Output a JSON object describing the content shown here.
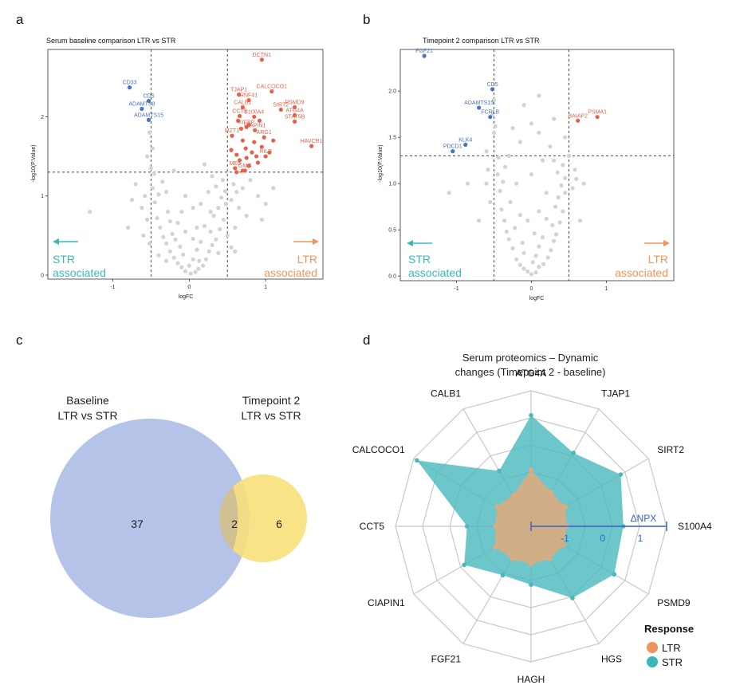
{
  "panels": {
    "a": "a",
    "b": "b",
    "c": "c",
    "d": "d"
  },
  "colors": {
    "up": "#e8604a",
    "down": "#4a72c8",
    "ns": "#d3d3d3",
    "str": "#3ab8b8",
    "ltr": "#f0935a",
    "venn_a": "#aebde6",
    "venn_b": "#f7e07a",
    "radar_str": "#49b9bd",
    "radar_ltr": "#e9a776"
  },
  "chart_data": [
    {
      "id": "a",
      "type": "scatter",
      "title": "Serum baseline comparison LTR vs STR",
      "xlabel": "logFC",
      "ylabel": "-log10(P.Value)",
      "xlim": [
        -1.85,
        1.75
      ],
      "ylim": [
        -0.05,
        2.85
      ],
      "xticks": [
        -1,
        0,
        1
      ],
      "yticks": [
        0,
        1,
        2
      ],
      "vlines": [
        -0.5,
        0.5
      ],
      "hline": 1.3,
      "left_label": [
        "STR",
        "associated"
      ],
      "right_label": [
        "LTR",
        "associated"
      ],
      "labeled": [
        {
          "label": "DCTN1",
          "x": 0.95,
          "y": 2.72,
          "group": "up"
        },
        {
          "label": "CALCOCO1",
          "x": 1.08,
          "y": 2.32,
          "group": "up"
        },
        {
          "label": "TJAP1",
          "x": 0.65,
          "y": 2.28,
          "group": "up"
        },
        {
          "label": "RNF41",
          "x": 0.78,
          "y": 2.21,
          "group": "up"
        },
        {
          "label": "PSMD9",
          "x": 1.38,
          "y": 2.12,
          "group": "up"
        },
        {
          "label": "CALB1",
          "x": 0.7,
          "y": 2.12,
          "group": "up"
        },
        {
          "label": "SIRT2",
          "x": 1.2,
          "y": 2.09,
          "group": "up"
        },
        {
          "label": "CCT5",
          "x": 0.66,
          "y": 2.01,
          "group": "up"
        },
        {
          "label": "S100A4",
          "x": 0.85,
          "y": 2.0,
          "group": "up"
        },
        {
          "label": "ATG4A",
          "x": 1.38,
          "y": 2.02,
          "group": "up"
        },
        {
          "label": "STAT5B",
          "x": 1.38,
          "y": 1.94,
          "group": "up"
        },
        {
          "label": "KIFBP",
          "x": 0.75,
          "y": 1.87,
          "group": "up"
        },
        {
          "label": "CIAPIN1",
          "x": 0.86,
          "y": 1.83,
          "group": "up"
        },
        {
          "label": "MZT1",
          "x": 0.56,
          "y": 1.76,
          "group": "up"
        },
        {
          "label": "ARG1",
          "x": 0.98,
          "y": 1.74,
          "group": "up"
        },
        {
          "label": "HAVCR1",
          "x": 1.6,
          "y": 1.63,
          "group": "up"
        },
        {
          "label": "RILP",
          "x": 1.0,
          "y": 1.5,
          "group": "up"
        },
        {
          "label": "ME5",
          "x": 0.6,
          "y": 1.35,
          "group": "up"
        },
        {
          "label": "GMG",
          "x": 0.73,
          "y": 1.32,
          "group": "up"
        },
        {
          "label": "CD33",
          "x": -0.78,
          "y": 2.37,
          "group": "down"
        },
        {
          "label": "CD5",
          "x": -0.53,
          "y": 2.2,
          "group": "down"
        },
        {
          "label": "ADAMTS8",
          "x": -0.62,
          "y": 2.1,
          "group": "down"
        },
        {
          "label": "ADAMTS15",
          "x": -0.53,
          "y": 1.96,
          "group": "down"
        }
      ],
      "up_points": [
        [
          0.62,
          1.3
        ],
        [
          0.7,
          1.32
        ],
        [
          0.78,
          1.38
        ],
        [
          0.66,
          1.45
        ],
        [
          0.9,
          1.42
        ],
        [
          0.82,
          1.55
        ],
        [
          0.74,
          1.6
        ],
        [
          0.95,
          1.62
        ],
        [
          0.7,
          1.7
        ],
        [
          0.85,
          1.68
        ],
        [
          0.62,
          1.52
        ],
        [
          0.78,
          1.9
        ],
        [
          0.92,
          1.95
        ],
        [
          0.68,
          1.85
        ],
        [
          1.05,
          1.55
        ],
        [
          0.55,
          1.58
        ],
        [
          0.88,
          1.5
        ],
        [
          0.75,
          1.48
        ],
        [
          1.1,
          1.7
        ],
        [
          0.64,
          1.95
        ]
      ],
      "ns_points": [
        [
          0.02,
          0.02
        ],
        [
          -0.05,
          0.05
        ],
        [
          0.08,
          0.04
        ],
        [
          -0.1,
          0.1
        ],
        [
          0.12,
          0.08
        ],
        [
          -0.15,
          0.15
        ],
        [
          0.18,
          0.12
        ],
        [
          0.0,
          0.12
        ],
        [
          -0.2,
          0.22
        ],
        [
          0.22,
          0.2
        ],
        [
          0.05,
          0.2
        ],
        [
          -0.08,
          0.26
        ],
        [
          0.26,
          0.3
        ],
        [
          -0.25,
          0.3
        ],
        [
          0.1,
          0.32
        ],
        [
          -0.12,
          0.36
        ],
        [
          0.3,
          0.38
        ],
        [
          -0.3,
          0.4
        ],
        [
          0.15,
          0.42
        ],
        [
          0.35,
          0.45
        ],
        [
          -0.34,
          0.48
        ],
        [
          0.05,
          0.46
        ],
        [
          -0.22,
          0.52
        ],
        [
          0.28,
          0.55
        ],
        [
          0.4,
          0.58
        ],
        [
          -0.38,
          0.6
        ],
        [
          0.2,
          0.62
        ],
        [
          -0.15,
          0.66
        ],
        [
          0.45,
          0.7
        ],
        [
          -0.42,
          0.72
        ],
        [
          0.32,
          0.75
        ],
        [
          -0.28,
          0.8
        ],
        [
          0.38,
          0.85
        ],
        [
          0.48,
          0.9
        ],
        [
          -0.45,
          0.92
        ],
        [
          0.42,
          0.98
        ],
        [
          -0.4,
          1.02
        ],
        [
          0.47,
          1.06
        ],
        [
          -0.48,
          1.1
        ],
        [
          0.35,
          1.12
        ],
        [
          -0.35,
          1.18
        ],
        [
          0.44,
          1.2
        ],
        [
          0.3,
          1.25
        ],
        [
          -0.46,
          1.28
        ],
        [
          0.55,
          0.95
        ],
        [
          0.62,
          1.05
        ],
        [
          0.58,
          1.15
        ],
        [
          0.7,
          1.1
        ],
        [
          0.65,
          0.85
        ],
        [
          0.8,
          1.2
        ],
        [
          0.75,
          0.75
        ],
        [
          0.9,
          1.0
        ],
        [
          0.6,
          0.6
        ],
        [
          -0.55,
          0.7
        ],
        [
          -0.62,
          0.85
        ],
        [
          -0.58,
          1.0
        ],
        [
          -0.7,
          1.15
        ],
        [
          -0.6,
          0.5
        ],
        [
          -0.75,
          0.95
        ],
        [
          -1.3,
          0.8
        ],
        [
          -0.8,
          0.6
        ],
        [
          1.0,
          0.9
        ],
        [
          1.1,
          1.1
        ],
        [
          0.95,
          0.7
        ],
        [
          -0.5,
          1.35
        ],
        [
          -0.55,
          1.5
        ],
        [
          -0.48,
          1.6
        ],
        [
          -0.52,
          1.8
        ],
        [
          -0.2,
          1.32
        ],
        [
          0.2,
          1.4
        ],
        [
          0.1,
          0.6
        ],
        [
          -0.05,
          0.55
        ],
        [
          -0.18,
          0.45
        ],
        [
          0.28,
          0.8
        ],
        [
          0.5,
          0.5
        ],
        [
          -0.52,
          0.4
        ],
        [
          0.55,
          0.35
        ],
        [
          0.6,
          0.3
        ],
        [
          -0.3,
          1.05
        ],
        [
          0.25,
          1.05
        ],
        [
          0.15,
          0.9
        ],
        [
          -0.1,
          0.8
        ],
        [
          -0.05,
          1.0
        ],
        [
          0.05,
          0.85
        ],
        [
          -0.25,
          0.68
        ],
        [
          0.38,
          0.28
        ],
        [
          -0.4,
          0.25
        ],
        [
          0.13,
          0.18
        ],
        [
          -0.3,
          0.18
        ]
      ]
    },
    {
      "id": "b",
      "type": "scatter",
      "title": "Timepoint 2 comparison LTR vs STR",
      "xlabel": "logFC",
      "ylabel": "-log10(P.Value)",
      "xlim": [
        -1.75,
        1.9
      ],
      "ylim": [
        -0.05,
        2.45
      ],
      "xticks": [
        -1,
        0,
        1
      ],
      "yticks": [
        0.0,
        0.5,
        1.0,
        1.5,
        2.0
      ],
      "vlines": [
        -0.5,
        0.5
      ],
      "hline": 1.3,
      "left_label": [
        "STR",
        "associated"
      ],
      "right_label": [
        "LTR",
        "associated"
      ],
      "labeled": [
        {
          "label": "FGF21",
          "x": -1.43,
          "y": 2.38,
          "group": "down"
        },
        {
          "label": "CD5",
          "x": -0.52,
          "y": 2.02,
          "group": "down"
        },
        {
          "label": "ADAMTS15",
          "x": -0.7,
          "y": 1.82,
          "group": "down"
        },
        {
          "label": "FCRLB",
          "x": -0.55,
          "y": 1.72,
          "group": "down"
        },
        {
          "label": "KLK4",
          "x": -0.88,
          "y": 1.42,
          "group": "down"
        },
        {
          "label": "PDCD1",
          "x": -1.05,
          "y": 1.35,
          "group": "down"
        },
        {
          "label": "PSMA1",
          "x": 0.88,
          "y": 1.72,
          "group": "up"
        },
        {
          "label": "BAIAP2",
          "x": 0.62,
          "y": 1.68,
          "group": "up"
        }
      ],
      "up_points": [],
      "ns_points": [
        [
          0.0,
          0.02
        ],
        [
          -0.05,
          0.05
        ],
        [
          0.06,
          0.04
        ],
        [
          -0.1,
          0.08
        ],
        [
          0.1,
          0.1
        ],
        [
          -0.15,
          0.12
        ],
        [
          0.16,
          0.13
        ],
        [
          0.02,
          0.15
        ],
        [
          -0.2,
          0.18
        ],
        [
          0.22,
          0.2
        ],
        [
          0.06,
          0.22
        ],
        [
          -0.1,
          0.25
        ],
        [
          0.26,
          0.28
        ],
        [
          -0.25,
          0.3
        ],
        [
          0.1,
          0.32
        ],
        [
          -0.12,
          0.36
        ],
        [
          0.3,
          0.38
        ],
        [
          -0.3,
          0.4
        ],
        [
          0.15,
          0.42
        ],
        [
          0.33,
          0.45
        ],
        [
          -0.33,
          0.48
        ],
        [
          0.04,
          0.46
        ],
        [
          -0.22,
          0.52
        ],
        [
          0.28,
          0.55
        ],
        [
          0.38,
          0.58
        ],
        [
          -0.36,
          0.6
        ],
        [
          0.2,
          0.62
        ],
        [
          -0.15,
          0.66
        ],
        [
          0.42,
          0.7
        ],
        [
          -0.4,
          0.72
        ],
        [
          0.32,
          0.75
        ],
        [
          -0.28,
          0.8
        ],
        [
          0.36,
          0.85
        ],
        [
          0.45,
          0.9
        ],
        [
          -0.42,
          0.92
        ],
        [
          0.4,
          0.98
        ],
        [
          -0.38,
          1.02
        ],
        [
          0.45,
          1.06
        ],
        [
          -0.45,
          1.1
        ],
        [
          0.35,
          1.12
        ],
        [
          -0.35,
          1.18
        ],
        [
          0.42,
          1.2
        ],
        [
          0.3,
          1.25
        ],
        [
          -0.44,
          1.28
        ],
        [
          0.55,
          0.95
        ],
        [
          0.6,
          1.05
        ],
        [
          0.58,
          1.15
        ],
        [
          -0.55,
          0.8
        ],
        [
          -0.6,
          1.0
        ],
        [
          -0.58,
          1.15
        ],
        [
          -0.5,
          1.55
        ],
        [
          -0.48,
          1.62
        ],
        [
          -0.52,
          1.75
        ],
        [
          -0.5,
          1.9
        ],
        [
          0.5,
          1.3
        ],
        [
          0.7,
          1.0
        ],
        [
          0.65,
          0.6
        ],
        [
          -0.7,
          0.6
        ],
        [
          -0.85,
          1.0
        ],
        [
          -1.1,
          0.9
        ],
        [
          0.1,
          0.7
        ],
        [
          -0.05,
          0.6
        ],
        [
          0.2,
          0.9
        ],
        [
          -0.2,
          1.0
        ],
        [
          0.0,
          1.1
        ],
        [
          0.15,
          1.25
        ],
        [
          -0.3,
          1.3
        ],
        [
          0.25,
          1.4
        ],
        [
          -0.15,
          1.45
        ],
        [
          0.1,
          1.55
        ],
        [
          0.0,
          1.65
        ],
        [
          -0.25,
          1.6
        ],
        [
          0.3,
          1.7
        ],
        [
          -0.1,
          1.85
        ],
        [
          0.1,
          1.95
        ],
        [
          -0.6,
          1.35
        ],
        [
          0.45,
          1.5
        ]
      ]
    },
    {
      "id": "c",
      "type": "venn",
      "sets": [
        {
          "name_line1": "Baseline",
          "name_line2": "LTR vs STR",
          "only": 37
        },
        {
          "name_line1": "Timepoint 2",
          "name_line2": "LTR vs STR",
          "only": 6
        }
      ],
      "intersection": 2
    },
    {
      "id": "d",
      "type": "radar",
      "title_line1": "Serum proteomics – Dynamic",
      "title_line2": "changes (Timepoint 2 - baseline)",
      "categories": [
        "S100A4",
        "SIRT2",
        "TJAP1",
        "ATG4A",
        "CALB1",
        "CALCOCO1",
        "CCT5",
        "CIAPIN1",
        "FGF21",
        "HAGH",
        "HGS",
        "PSMD9"
      ],
      "range": [
        -1.9,
        1.7
      ],
      "ticks": [
        -1,
        0,
        1
      ],
      "axis_label": "ΔNPX",
      "series": [
        {
          "name": "STR",
          "values": [
            0.55,
            0.85,
            0.35,
            1.05,
            -0.2,
            1.6,
            -0.2,
            0.15,
            -0.4,
            -0.35,
            0.3,
            0.65
          ]
        },
        {
          "name": "LTR",
          "values": [
            -0.95,
            -0.85,
            -0.85,
            -0.4,
            -0.95,
            -0.85,
            -0.95,
            -0.8,
            -0.9,
            -0.9,
            -0.9,
            -0.9
          ]
        }
      ],
      "legend_title": "Response",
      "legend_items": [
        "LTR",
        "STR"
      ]
    }
  ]
}
